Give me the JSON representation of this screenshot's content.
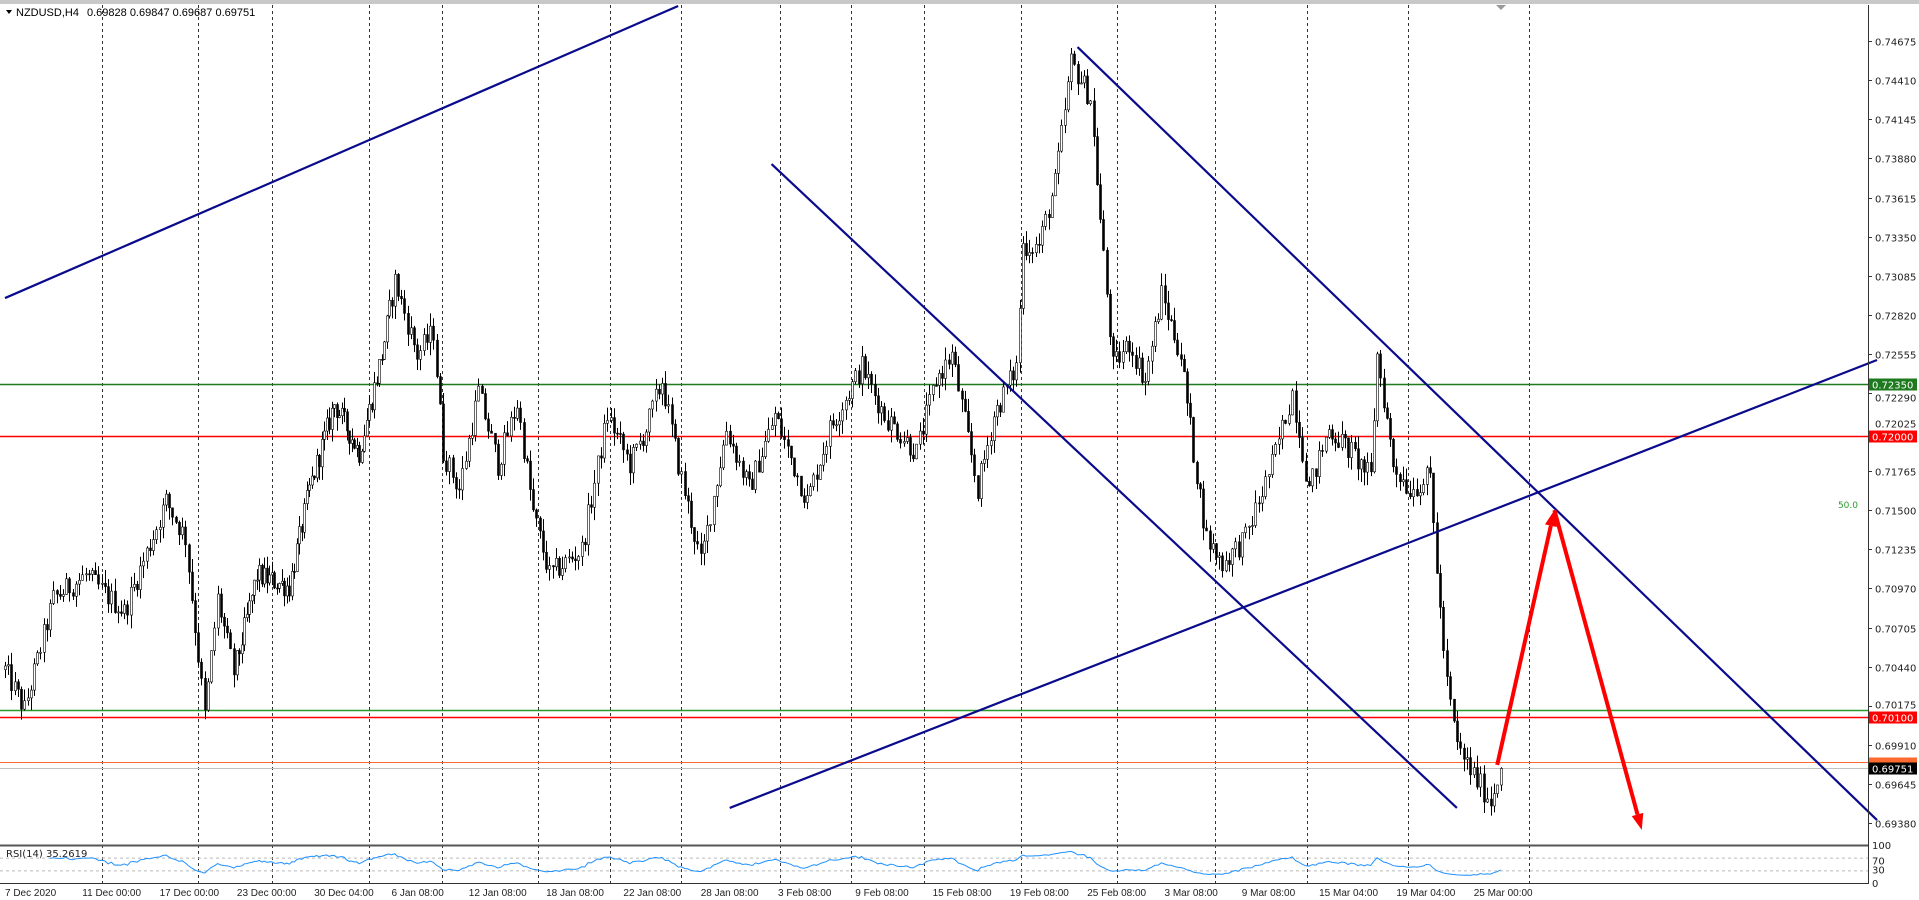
{
  "header": {
    "symbol_timeframe": "NZDUSD,H4",
    "ohlc": "0.69828 0.69847 0.69687 0.69751"
  },
  "price_axis": {
    "ticks": [
      "0.74675",
      "0.74410",
      "0.74145",
      "0.73880",
      "0.73615",
      "0.73350",
      "0.73085",
      "0.72820",
      "0.72555",
      "0.72290",
      "0.72025",
      "0.71765",
      "0.71500",
      "0.71235",
      "0.70970",
      "0.70705",
      "0.70440",
      "0.70175",
      "0.69910",
      "0.69645",
      "0.69380"
    ]
  },
  "levels": [
    {
      "price": 0.7235,
      "label": "0.72350",
      "color": "#1e7a1e"
    },
    {
      "price": 0.72,
      "label": "0.72000",
      "color": "#ff0000"
    },
    {
      "price": 0.7015,
      "label": "",
      "color": "#2a9a2a"
    },
    {
      "price": 0.701,
      "label": "0.70100",
      "color": "#ff0000"
    }
  ],
  "fib_label": "50.0",
  "bid": {
    "price": 0.69751,
    "label": "0.69751",
    "color": "#000000"
  },
  "ask_line_color": "#ff6a30",
  "time_axis": {
    "labels": [
      "7 Dec 2020",
      "11 Dec 00:00",
      "17 Dec 00:00",
      "23 Dec 00:00",
      "30 Dec 04:00",
      "6 Jan 08:00",
      "12 Jan 08:00",
      "18 Jan 08:00",
      "22 Jan 08:00",
      "28 Jan 08:00",
      "3 Feb 08:00",
      "9 Feb 08:00",
      "15 Feb 08:00",
      "19 Feb 08:00",
      "25 Feb 08:00",
      "3 Mar 08:00",
      "9 Mar 08:00",
      "15 Mar 04:00",
      "19 Mar 04:00",
      "25 Mar 00:00"
    ],
    "label_times": [
      "2020-12-07 00:00",
      "2020-12-11 00:00",
      "2020-12-17 00:00",
      "2020-12-23 00:00",
      "2020-12-30 04:00",
      "2021-01-06 08:00",
      "2021-01-12 08:00",
      "2021-01-18 08:00",
      "2021-01-22 08:00",
      "2021-01-28 08:00",
      "2021-02-03 08:00",
      "2021-02-09 08:00",
      "2021-02-15 08:00",
      "2021-02-19 08:00",
      "2021-02-25 08:00",
      "2021-03-03 08:00",
      "2021-03-09 08:00",
      "2021-03-15 04:00",
      "2021-03-19 04:00",
      "2021-03-25 00:00"
    ]
  },
  "rsi": {
    "label": "RSI(14) 35.2619",
    "levels": [
      "100",
      "70",
      "30",
      "0"
    ],
    "color": "#1e90ff"
  },
  "chart_data": {
    "type": "candlestick",
    "symbol": "NZDUSD",
    "timeframe": "H4",
    "ylim": [
      0.6925,
      0.748
    ],
    "grid": "vertical dotted",
    "price_path": [
      [
        "2020-12-07 00:00",
        0.7042
      ],
      [
        "2020-12-08 00:00",
        0.7015
      ],
      [
        "2020-12-09 12:00",
        0.709
      ],
      [
        "2020-12-11 04:00",
        0.7106
      ],
      [
        "2020-12-15 04:00",
        0.7081
      ],
      [
        "2020-12-17 08:00",
        0.7156
      ],
      [
        "2020-12-18 08:00",
        0.7131
      ],
      [
        "2020-12-21 08:00",
        0.7011
      ],
      [
        "2020-12-22 00:00",
        0.709
      ],
      [
        "2020-12-22 20:00",
        0.704
      ],
      [
        "2020-12-24 08:00",
        0.7106
      ],
      [
        "2020-12-28 12:00",
        0.7098
      ],
      [
        "2020-12-29 20:00",
        0.7164
      ],
      [
        "2020-12-31 12:00",
        0.7222
      ],
      [
        "2021-01-04 04:00",
        0.7189
      ],
      [
        "2021-01-05 16:00",
        0.7255
      ],
      [
        "2021-01-06 12:00",
        0.7305
      ],
      [
        "2021-01-07 16:00",
        0.7255
      ],
      [
        "2021-01-08 12:00",
        0.7271
      ],
      [
        "2021-01-11 00:00",
        0.7189
      ],
      [
        "2021-01-11 20:00",
        0.7164
      ],
      [
        "2021-01-12 20:00",
        0.723
      ],
      [
        "2021-01-13 20:00",
        0.7181
      ],
      [
        "2021-01-14 20:00",
        0.7222
      ],
      [
        "2021-01-15 16:00",
        0.7148
      ],
      [
        "2021-01-18 12:00",
        0.7106
      ],
      [
        "2021-01-20 04:00",
        0.7123
      ],
      [
        "2021-01-21 12:00",
        0.7214
      ],
      [
        "2021-01-22 16:00",
        0.7181
      ],
      [
        "2021-01-25 12:00",
        0.7205
      ],
      [
        "2021-01-26 08:00",
        0.7238
      ],
      [
        "2021-01-27 04:00",
        0.7181
      ],
      [
        "2021-01-28 08:00",
        0.7114
      ],
      [
        "2021-01-28 20:00",
        0.7148
      ],
      [
        "2021-01-29 16:00",
        0.7205
      ],
      [
        "2021-02-01 20:00",
        0.7164
      ],
      [
        "2021-02-03 04:00",
        0.7214
      ],
      [
        "2021-02-04 20:00",
        0.7156
      ],
      [
        "2021-02-08 00:00",
        0.7205
      ],
      [
        "2021-02-09 16:00",
        0.7247
      ],
      [
        "2021-02-10 20:00",
        0.7214
      ],
      [
        "2021-02-12 12:00",
        0.7189
      ],
      [
        "2021-02-15 12:00",
        0.7238
      ],
      [
        "2021-02-16 08:00",
        0.7255
      ],
      [
        "2021-02-17 16:00",
        0.7164
      ],
      [
        "2021-02-18 12:00",
        0.7214
      ],
      [
        "2021-02-19 16:00",
        0.7247
      ],
      [
        "2021-02-22 00:00",
        0.7329
      ],
      [
        "2021-02-22 20:00",
        0.7329
      ],
      [
        "2021-02-23 16:00",
        0.7371
      ],
      [
        "2021-02-24 12:00",
        0.7453
      ],
      [
        "2021-02-25 12:00",
        0.7429
      ],
      [
        "2021-02-26 00:00",
        0.7346
      ],
      [
        "2021-02-26 16:00",
        0.7247
      ],
      [
        "2021-03-01 12:00",
        0.7263
      ],
      [
        "2021-03-02 08:00",
        0.7238
      ],
      [
        "2021-03-03 04:00",
        0.7296
      ],
      [
        "2021-03-04 04:00",
        0.7255
      ],
      [
        "2021-03-04 20:00",
        0.7189
      ],
      [
        "2021-03-05 12:00",
        0.7131
      ],
      [
        "2021-03-08 08:00",
        0.7114
      ],
      [
        "2021-03-09 12:00",
        0.7131
      ],
      [
        "2021-03-10 20:00",
        0.7181
      ],
      [
        "2021-03-11 20:00",
        0.723
      ],
      [
        "2021-03-12 16:00",
        0.7164
      ],
      [
        "2021-03-15 16:00",
        0.7205
      ],
      [
        "2021-03-16 20:00",
        0.7189
      ],
      [
        "2021-03-17 20:00",
        0.7172
      ],
      [
        "2021-03-18 04:00",
        0.7255
      ],
      [
        "2021-03-19 00:00",
        0.7181
      ],
      [
        "2021-03-19 20:00",
        0.7164
      ],
      [
        "2021-03-22 20:00",
        0.7172
      ],
      [
        "2021-03-23 08:00",
        0.7081
      ],
      [
        "2021-03-23 16:00",
        0.7032
      ],
      [
        "2021-03-24 04:00",
        0.699
      ],
      [
        "2021-03-24 20:00",
        0.6974
      ],
      [
        "2021-03-25 20:00",
        0.6953
      ],
      [
        "2021-03-26 08:00",
        0.69751
      ]
    ],
    "trendlines": [
      {
        "from": [
          "2020-12-07 00:00",
          0.72935
        ],
        "to": [
          "2021-01-27 04:00",
          0.74912
        ],
        "color": "#0a0a8c"
      },
      {
        "from": [
          "2021-02-03 00:00",
          0.73842
        ],
        "to": [
          "2021-03-24 04:00",
          0.69484
        ],
        "color": "#0a0a8c"
      },
      {
        "from": [
          "2021-02-24 20:00",
          0.74634
        ],
        "to": [
          "2021-04-22 00:00",
          0.69402
        ],
        "color": "#0a0a8c"
      },
      {
        "from": [
          "2021-01-29 20:00",
          0.69484
        ],
        "to": [
          "2021-04-22 00:00",
          0.72516
        ],
        "color": "#0a0a8c"
      }
    ],
    "forecast_arrows": [
      {
        "from": [
          "2021-03-26 04:00",
          0.69775
        ],
        "to": [
          "2021-03-31 00:00",
          0.715
        ],
        "color": "#ff0000"
      },
      {
        "from": [
          "2021-03-31 00:00",
          0.715
        ],
        "to": [
          "2021-04-06 08:00",
          0.69335
        ],
        "color": "#ff0000"
      }
    ]
  }
}
